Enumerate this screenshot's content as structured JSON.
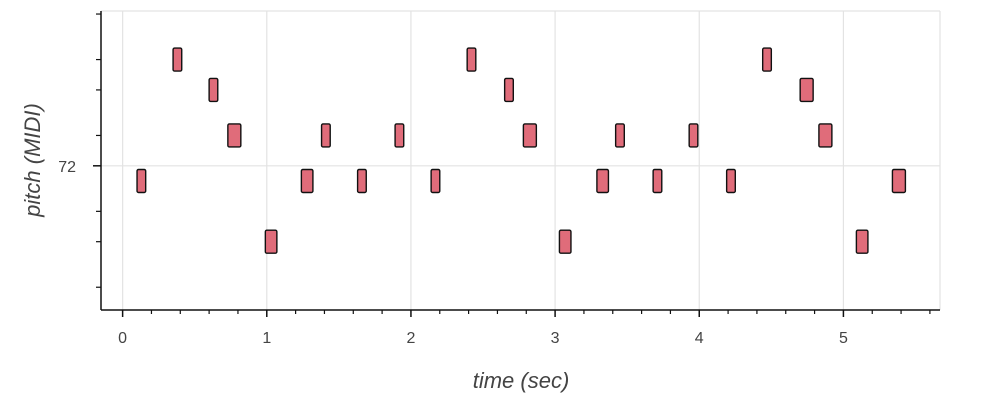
{
  "chart_data": {
    "type": "piano-roll",
    "xlabel": "time (sec)",
    "ylabel": "pitch (MIDI)",
    "xlim": [
      -0.15,
      5.67
    ],
    "ylim": [
      62.5,
      82.2
    ],
    "x_ticks": [
      0,
      1,
      2,
      3,
      4,
      5
    ],
    "y_ticks_labeled": [
      72
    ],
    "y_minor_ticks": [
      64,
      67,
      69,
      74,
      77,
      79,
      82
    ],
    "grid": true,
    "note_color": "#e06c7a",
    "notes": [
      {
        "start": 0.1,
        "end": 0.16,
        "pitch": 71
      },
      {
        "start": 0.35,
        "end": 0.41,
        "pitch": 79
      },
      {
        "start": 0.6,
        "end": 0.66,
        "pitch": 77
      },
      {
        "start": 0.73,
        "end": 0.82,
        "pitch": 74
      },
      {
        "start": 0.99,
        "end": 1.07,
        "pitch": 67
      },
      {
        "start": 1.24,
        "end": 1.32,
        "pitch": 71
      },
      {
        "start": 1.38,
        "end": 1.44,
        "pitch": 74
      },
      {
        "start": 1.63,
        "end": 1.69,
        "pitch": 71
      },
      {
        "start": 1.89,
        "end": 1.95,
        "pitch": 74
      },
      {
        "start": 2.14,
        "end": 2.2,
        "pitch": 71
      },
      {
        "start": 2.39,
        "end": 2.45,
        "pitch": 79
      },
      {
        "start": 2.65,
        "end": 2.71,
        "pitch": 77
      },
      {
        "start": 2.78,
        "end": 2.87,
        "pitch": 74
      },
      {
        "start": 3.03,
        "end": 3.11,
        "pitch": 67
      },
      {
        "start": 3.29,
        "end": 3.37,
        "pitch": 71
      },
      {
        "start": 3.42,
        "end": 3.48,
        "pitch": 74
      },
      {
        "start": 3.68,
        "end": 3.74,
        "pitch": 71
      },
      {
        "start": 3.93,
        "end": 3.99,
        "pitch": 74
      },
      {
        "start": 4.19,
        "end": 4.25,
        "pitch": 71
      },
      {
        "start": 4.44,
        "end": 4.5,
        "pitch": 79
      },
      {
        "start": 4.7,
        "end": 4.79,
        "pitch": 77
      },
      {
        "start": 4.83,
        "end": 4.92,
        "pitch": 74
      },
      {
        "start": 5.09,
        "end": 5.17,
        "pitch": 67
      },
      {
        "start": 5.34,
        "end": 5.43,
        "pitch": 71
      }
    ]
  }
}
